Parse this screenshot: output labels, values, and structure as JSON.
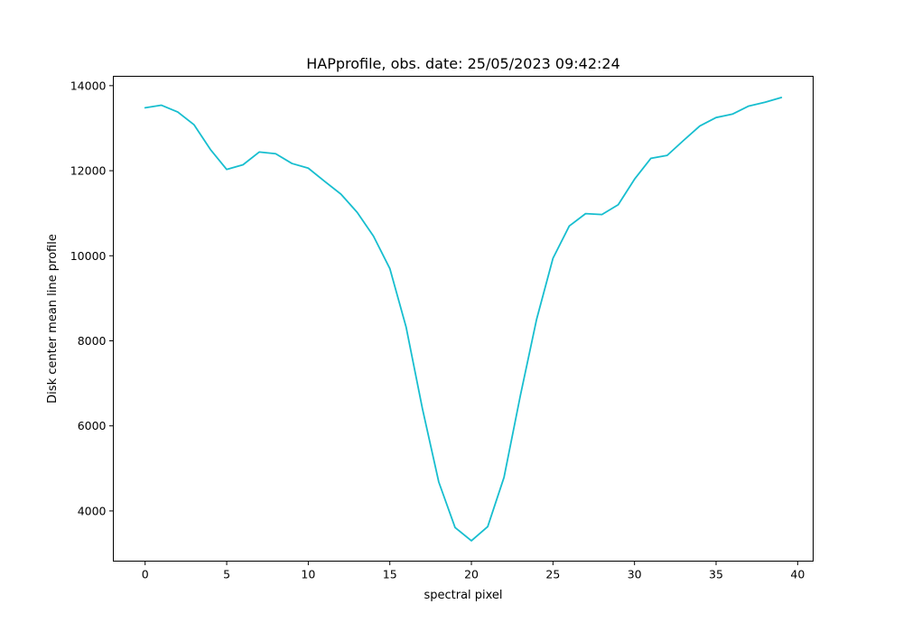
{
  "chart_data": {
    "type": "line",
    "title": "HAPprofile, obs. date: 25/05/2023 09:42:24",
    "xlabel": "spectral pixel",
    "ylabel": "Disk center mean line profile",
    "xlim": [
      -1.95,
      40.95
    ],
    "ylim": [
      2820,
      14220
    ],
    "xticks": [
      0,
      5,
      10,
      15,
      20,
      25,
      30,
      35,
      40
    ],
    "yticks": [
      4000,
      6000,
      8000,
      10000,
      12000,
      14000
    ],
    "grid": false,
    "legend": "none",
    "series": [
      {
        "color": "#17becf",
        "x": [
          0,
          1,
          2,
          3,
          4,
          5,
          6,
          7,
          8,
          9,
          10,
          11,
          12,
          13,
          14,
          15,
          16,
          17,
          18,
          19,
          20,
          21,
          22,
          23,
          24,
          25,
          26,
          27,
          28,
          29,
          30,
          31,
          32,
          33,
          34,
          35,
          36,
          37,
          38,
          39
        ],
        "y": [
          13480,
          13540,
          13380,
          13080,
          12500,
          12030,
          12140,
          12440,
          12400,
          12170,
          12060,
          11750,
          11450,
          11020,
          10460,
          9700,
          8320,
          6400,
          4680,
          3610,
          3300,
          3630,
          4790,
          6710,
          8510,
          9940,
          10700,
          10990,
          10970,
          11200,
          11800,
          12290,
          12360,
          12710,
          13050,
          13250,
          13330,
          13520,
          13610,
          13720
        ]
      }
    ]
  }
}
